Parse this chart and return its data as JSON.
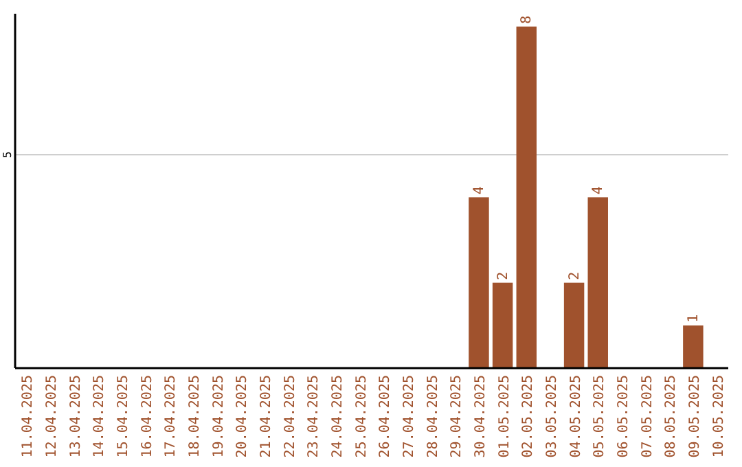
{
  "chart_data": {
    "type": "bar",
    "categories": [
      "11.04.2025",
      "12.04.2025",
      "13.04.2025",
      "14.04.2025",
      "15.04.2025",
      "16.04.2025",
      "17.04.2025",
      "18.04.2025",
      "19.04.2025",
      "20.04.2025",
      "21.04.2025",
      "22.04.2025",
      "23.04.2025",
      "24.04.2025",
      "25.04.2025",
      "26.04.2025",
      "27.04.2025",
      "28.04.2025",
      "29.04.2025",
      "30.04.2025",
      "01.05.2025",
      "02.05.2025",
      "03.05.2025",
      "04.05.2025",
      "05.05.2025",
      "06.05.2025",
      "07.05.2025",
      "08.05.2025",
      "09.05.2025",
      "10.05.2025"
    ],
    "values": [
      null,
      null,
      null,
      null,
      null,
      null,
      null,
      null,
      null,
      null,
      null,
      null,
      null,
      null,
      null,
      null,
      null,
      null,
      null,
      4,
      2,
      8,
      null,
      2,
      4,
      null,
      null,
      null,
      1,
      null
    ],
    "color": "#a0522d",
    "ylim": [
      0,
      8.3
    ],
    "yticks": [
      5
    ],
    "grid": "y",
    "data_labels": true
  }
}
